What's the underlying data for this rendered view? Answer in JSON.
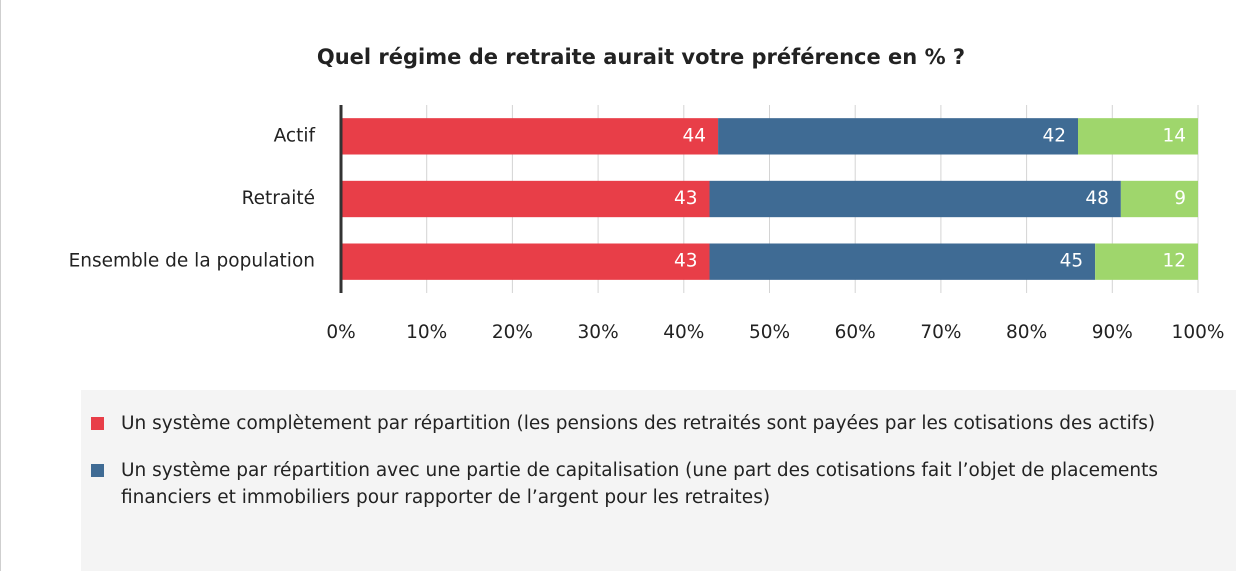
{
  "chart_data": {
    "type": "stacked_bar_horizontal",
    "title": "Quel régime de retraite aurait votre préférence en % ?",
    "categories": [
      "Actif",
      "Retraité",
      "Ensemble de la population"
    ],
    "series": [
      {
        "name": "Un système complètement par répartition (les pensions des retraités sont payées par les cotisations des actifs)",
        "color": "#e83e48",
        "values": [
          44,
          43,
          43
        ]
      },
      {
        "name": "Un système par répartition avec une partie de capitalisation (une part des cotisations fait l’objet de placements financiers et immobiliers pour rapporter de l’argent pour les retraites)",
        "color": "#3f6b94",
        "values": [
          42,
          48,
          45
        ]
      },
      {
        "color": "#9fd66c",
        "values": [
          14,
          9,
          12
        ]
      }
    ],
    "xlim": [
      0,
      100
    ],
    "xticks": [
      {
        "value": 0,
        "label": "0%"
      },
      {
        "value": 10,
        "label": "10%"
      },
      {
        "value": 20,
        "label": "20%"
      },
      {
        "value": 30,
        "label": "30%"
      },
      {
        "value": 40,
        "label": "40%"
      },
      {
        "value": 50,
        "label": "50%"
      },
      {
        "value": 60,
        "label": "60%"
      },
      {
        "value": 70,
        "label": "70%"
      },
      {
        "value": 80,
        "label": "80%"
      },
      {
        "value": 90,
        "label": "90%"
      },
      {
        "value": 100,
        "label": "100%"
      }
    ],
    "grid": true
  }
}
